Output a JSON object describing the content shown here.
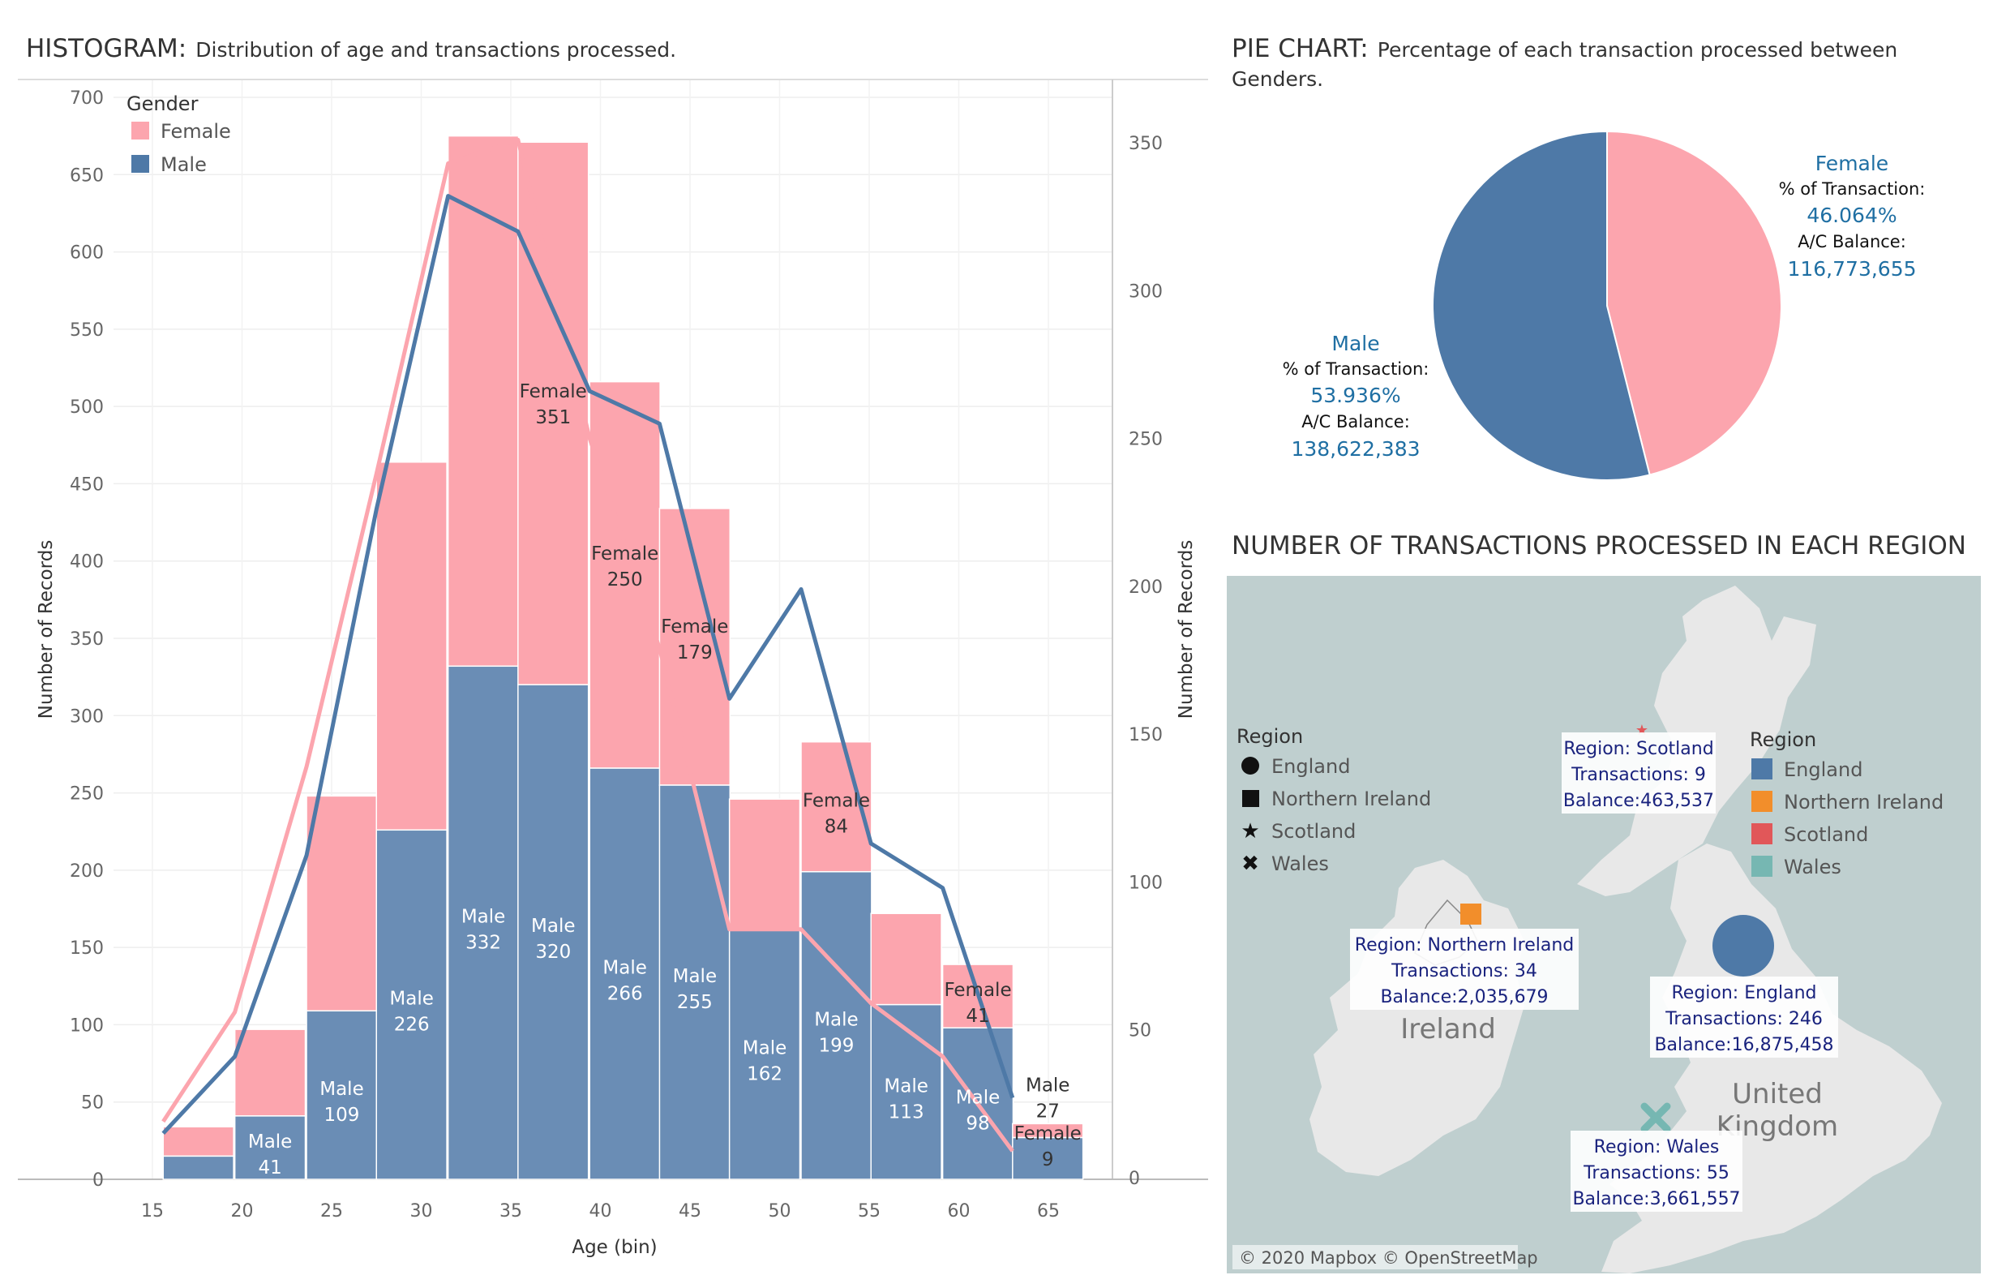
{
  "histogram": {
    "title": "HISTOGRAM:",
    "subtitle": "Distribution of age and transactions processed.",
    "xlabel": "Age (bin)",
    "ylabel_left": "Number of Records",
    "ylabel_right": "Number of Records",
    "legend_title": "Gender",
    "legend": [
      {
        "name": "Female",
        "color": "#fca5ae"
      },
      {
        "name": "Male",
        "color": "#4e79a7"
      }
    ]
  },
  "pie": {
    "title": "PIE CHART:",
    "subtitle_line1": "Percentage of each transaction processed between",
    "subtitle_line2": "Genders.",
    "female": {
      "head": "Female",
      "pct_key": "% of Transaction:",
      "pct": "46.064%",
      "bal_key": "A/C Balance:",
      "bal": "116,773,655"
    },
    "male": {
      "head": "Male",
      "pct_key": "% of Transaction:",
      "pct": "53.936%",
      "bal_key": "A/C Balance:",
      "bal": "138,622,383"
    }
  },
  "map": {
    "title": "NUMBER OF TRANSACTIONS PROCESSED IN EACH REGION",
    "shape_legend_title": "Region",
    "shape_legend": [
      {
        "name": "England",
        "icon": "circle-icon"
      },
      {
        "name": "Northern Ireland",
        "icon": "square-icon"
      },
      {
        "name": "Scotland",
        "icon": "star-icon"
      },
      {
        "name": "Wales",
        "icon": "cross-icon"
      }
    ],
    "color_legend_title": "Region",
    "color_legend": [
      {
        "name": "England",
        "color": "#4e79a7"
      },
      {
        "name": "Northern Ireland",
        "color": "#f28e2b"
      },
      {
        "name": "Scotland",
        "color": "#e15759"
      },
      {
        "name": "Wales",
        "color": "#76b7b2"
      }
    ],
    "regions": {
      "scotland": {
        "line1": "Region: Scotland",
        "line2": "Transactions: 9",
        "line3": "Balance:463,537"
      },
      "ni": {
        "line1": "Region: Northern Ireland",
        "line2": "Transactions: 34",
        "line3": "Balance:2,035,679"
      },
      "england": {
        "line1": "Region: England",
        "line2": "Transactions: 246",
        "line3": "Balance:16,875,458"
      },
      "wales": {
        "line1": "Region: Wales",
        "line2": "Transactions: 55",
        "line3": "Balance:3,661,557"
      }
    },
    "place_ireland": "Ireland",
    "place_uk1": "United",
    "place_uk2": "Kingdom",
    "attribution": "© 2020 Mapbox © OpenStreetMap"
  },
  "chart_data": [
    {
      "type": "bar",
      "stacked": true,
      "title": "HISTOGRAM: Distribution of age and transactions processed.",
      "xlabel": "Age (bin)",
      "ylabel": "Number of Records",
      "x_ticks": [
        15,
        20,
        25,
        30,
        35,
        40,
        45,
        50,
        55,
        60,
        65
      ],
      "bins": [
        15.6,
        19.6,
        23.6,
        27.5,
        31.5,
        35.4,
        39.4,
        43.3,
        47.2,
        51.2,
        55.1,
        59.1,
        63.0
      ],
      "ylim_left": [
        0,
        700
      ],
      "ylim_right": [
        0,
        350
      ],
      "series": [
        {
          "name": "Male",
          "color": "#6a8db5",
          "values": [
            15,
            41,
            109,
            226,
            332,
            320,
            266,
            255,
            162,
            199,
            113,
            98,
            27
          ]
        },
        {
          "name": "Female",
          "color": "#fca5ae",
          "values": [
            19,
            56,
            139,
            238,
            343,
            351,
            250,
            179,
            84,
            84,
            59,
            41,
            9
          ]
        }
      ],
      "bar_labels": [
        {
          "series": "Male",
          "bin": 1,
          "text": "Male",
          "value": "41"
        },
        {
          "series": "Male",
          "bin": 2,
          "text": "Male",
          "value": "109"
        },
        {
          "series": "Male",
          "bin": 3,
          "text": "Male",
          "value": "226"
        },
        {
          "series": "Male",
          "bin": 4,
          "text": "Male",
          "value": "332"
        },
        {
          "series": "Male",
          "bin": 5,
          "text": "Male",
          "value": "320"
        },
        {
          "series": "Male",
          "bin": 6,
          "text": "Male",
          "value": "266"
        },
        {
          "series": "Male",
          "bin": 7,
          "text": "Male",
          "value": "255"
        },
        {
          "series": "Male",
          "bin": 8,
          "text": "Male",
          "value": "162"
        },
        {
          "series": "Male",
          "bin": 9,
          "text": "Male",
          "value": "199"
        },
        {
          "series": "Male",
          "bin": 10,
          "text": "Male",
          "value": "113"
        },
        {
          "series": "Male",
          "bin": 11,
          "text": "Male",
          "value": "98"
        },
        {
          "series": "Male",
          "bin": 12,
          "text": "Male",
          "value": "27"
        },
        {
          "series": "Female",
          "bin": 5,
          "text": "Female",
          "value": "351"
        },
        {
          "series": "Female",
          "bin": 6,
          "text": "Female",
          "value": "250"
        },
        {
          "series": "Female",
          "bin": 7,
          "text": "Female",
          "value": "179"
        },
        {
          "series": "Female",
          "bin": 9,
          "text": "Female",
          "value": "84"
        },
        {
          "series": "Female",
          "bin": 11,
          "text": "Female",
          "value": "41"
        },
        {
          "series": "Female",
          "bin": 12,
          "text": "Female",
          "value": "9"
        }
      ],
      "lines": [
        {
          "name": "Male",
          "color": "#4e79a7",
          "axis": "right",
          "x": [
            15.6,
            19.6,
            23.6,
            27.5,
            31.5,
            35.4,
            39.4,
            43.3,
            47.2,
            51.2,
            55.1,
            59.1,
            63.0
          ],
          "values": [
            15,
            41,
            109,
            226,
            332,
            320,
            266,
            255,
            162,
            199,
            113,
            98,
            27
          ]
        },
        {
          "name": "Female",
          "color": "#fca5ae",
          "axis": "right",
          "x": [
            15.6,
            19.6,
            23.6,
            27.5,
            31.5,
            35.4,
            39.4,
            43.3,
            47.2,
            51.2,
            55.1,
            59.1,
            63.0
          ],
          "values": [
            19,
            56,
            139,
            238,
            343,
            351,
            250,
            179,
            84,
            84,
            59,
            41,
            9
          ]
        }
      ],
      "grid": true,
      "legend": "top-left"
    },
    {
      "type": "pie",
      "title": "PIE CHART: Percentage of each transaction processed between Genders.",
      "slices": [
        {
          "name": "Female",
          "value": 46.064,
          "color": "#fca5ae"
        },
        {
          "name": "Male",
          "value": 53.936,
          "color": "#4e79a7"
        }
      ]
    }
  ]
}
